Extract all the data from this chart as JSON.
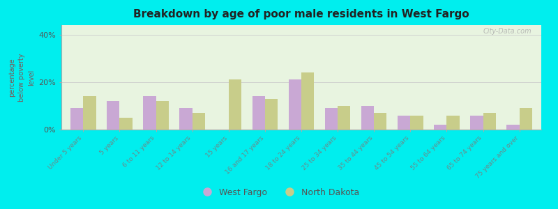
{
  "title": "Breakdown by age of poor male residents in West Fargo",
  "categories": [
    "Under 5 years",
    "5 years",
    "6 to 11 years",
    "12 to 14 years",
    "15 years",
    "16 and 17 years",
    "18 to 24 years",
    "25 to 34 years",
    "35 to 44 years",
    "45 to 54 years",
    "55 to 64 years",
    "65 to 74 years",
    "75 years and over"
  ],
  "west_fargo": [
    9,
    12,
    14,
    9,
    0,
    14,
    21,
    9,
    10,
    6,
    2,
    6,
    2
  ],
  "north_dakota": [
    14,
    5,
    12,
    7,
    21,
    13,
    24,
    10,
    7,
    6,
    6,
    7,
    9
  ],
  "wf_color": "#c9a8d4",
  "nd_color": "#c8cd8a",
  "plot_bg": "#e8f4e0",
  "outer_bg": "#00eeee",
  "title_color": "#222222",
  "ylabel": "percentage\nbelow poverty\nlevel",
  "ylim": [
    0,
    44
  ],
  "yticks": [
    0,
    20,
    40
  ],
  "ytick_labels": [
    "0%",
    "20%",
    "40%"
  ],
  "bar_width": 0.35,
  "legend_wf": "West Fargo",
  "legend_nd": "North Dakota",
  "watermark": "City-Data.com",
  "tick_label_color": "#6a8a8a",
  "ylabel_color": "#7a5a5a"
}
